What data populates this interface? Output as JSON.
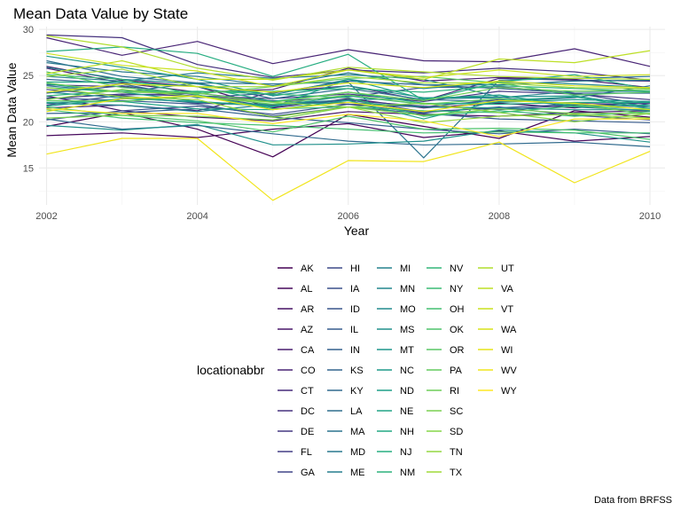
{
  "chart_data": {
    "type": "line",
    "title": "Mean Data Value by State",
    "xlabel": "Year",
    "ylabel": "Mean Data Value",
    "caption": "Data from BRFSS",
    "legend_title": "locationabbr",
    "legend_position": "bottom",
    "grid": true,
    "xlim": [
      2001.9,
      2010.2
    ],
    "ylim": [
      11,
      30.3
    ],
    "x_ticks": [
      2002,
      2004,
      2006,
      2008,
      2010
    ],
    "y_ticks": [
      15,
      20,
      25,
      30
    ],
    "x": [
      2002,
      2003,
      2004,
      2005,
      2006,
      2007,
      2008,
      2009,
      2010
    ],
    "colors": [
      "#440154",
      "#440256",
      "#450457",
      "#450559",
      "#46075a",
      "#46085c",
      "#460a5d",
      "#460b5e",
      "#470d60",
      "#470e61",
      "#471063",
      "#471164",
      "#471365",
      "#481467",
      "#481668",
      "#481769",
      "#48186a",
      "#481a6c",
      "#481b6d",
      "#481c6e",
      "#481d6f",
      "#481f70",
      "#482071",
      "#482173",
      "#482374",
      "#482475",
      "#482576",
      "#482677",
      "#482878",
      "#482979",
      "#472a7a",
      "#472c7a",
      "#472d7b",
      "#472e7c",
      "#472f7d",
      "#46307e",
      "#46327e",
      "#46337f",
      "#463480",
      "#453581",
      "#453781",
      "#453882",
      "#443983",
      "#443a83",
      "#443b84",
      "#433d84",
      "#433e85",
      "#423f85",
      "#424086",
      "#424186",
      "#414487",
      "#404588",
      "#404688",
      "#3f4788",
      "#3f4889",
      "#3e4989",
      "#3e4a89",
      "#3e4c8a",
      "#3d4d8a",
      "#3d4e8a",
      "#3c4f8a",
      "#3c508b",
      "#3b518b",
      "#3b528b",
      "#3a538b",
      "#3a548c",
      "#39558c",
      "#39568c",
      "#38588c",
      "#38598c",
      "#375a8c",
      "#375b8d",
      "#365c8d",
      "#365d8d",
      "#355e8d",
      "#355f8d",
      "#34608d",
      "#34618d",
      "#33628d",
      "#33638d",
      "#32648e",
      "#32658e",
      "#31668e",
      "#31678e",
      "#31688e",
      "#30698e",
      "#306a8e",
      "#2f6b8e",
      "#2f6c8e",
      "#2e6d8e",
      "#2e6e8e",
      "#2e6f8e",
      "#2d708e",
      "#2d718e",
      "#2c718e",
      "#2c728e",
      "#2c738e",
      "#2b748e",
      "#2b758e",
      "#2a768e",
      "#2a778e",
      "#2a788e",
      "#29798e",
      "#297a8e",
      "#297b8e",
      "#287c8e",
      "#287d8e",
      "#277e8e",
      "#277f8e",
      "#27808e",
      "#26818e",
      "#26828e",
      "#26828e",
      "#25838e",
      "#25848e",
      "#25858e",
      "#24868e",
      "#24878e",
      "#23888e",
      "#23898e",
      "#238a8d",
      "#228b8d",
      "#228c8d",
      "#228d8d",
      "#218e8d",
      "#218f8d",
      "#21908d",
      "#21918c",
      "#20928c",
      "#20928c",
      "#20938c",
      "#1f948c",
      "#1f958b",
      "#1f968b",
      "#1f978b",
      "#1f988b",
      "#1f998a",
      "#1f9a8a",
      "#1e9b8a",
      "#1e9c89",
      "#1e9d89",
      "#1f9e89",
      "#1f9f88",
      "#1fa088",
      "#1fa188",
      "#1fa187",
      "#1fa287",
      "#20a386",
      "#20a486",
      "#21a585",
      "#21a685",
      "#22a785",
      "#22a884",
      "#23a983",
      "#24aa83",
      "#25ab82",
      "#25ac82",
      "#26ad81",
      "#27ad81",
      "#28ae80",
      "#29af7f",
      "#2ab07f",
      "#2cb17e",
      "#2db27d",
      "#2eb37c",
      "#2fb47c",
      "#31b57b",
      "#32b67a",
      "#34b679",
      "#35b779",
      "#37b878",
      "#38b977",
      "#3aba76",
      "#3bbb75",
      "#3dbc74",
      "#3fbc73",
      "#40bd72",
      "#42be71",
      "#44bf70",
      "#46c06f",
      "#48c16e",
      "#4ac16d",
      "#4cc26c",
      "#4ec36b",
      "#50c46a",
      "#52c569",
      "#54c568",
      "#56c667",
      "#58c765",
      "#5ac864",
      "#5cc863",
      "#5ec962",
      "#60ca60",
      "#63cb5f",
      "#65cb5e",
      "#67cc5c",
      "#69cd5b",
      "#6ccd5a",
      "#6ece58",
      "#70cf57",
      "#73d056",
      "#75d054",
      "#77d153",
      "#7ad151",
      "#7cd250",
      "#7fd34e",
      "#81d34d",
      "#84d44b",
      "#86d549",
      "#89d548",
      "#8bd646",
      "#8ed645",
      "#90d743",
      "#93d741",
      "#95d840",
      "#98d83e",
      "#9bd93c",
      "#9dd93b",
      "#a0da39",
      "#a2da37",
      "#a5db36",
      "#a8db34",
      "#aadc32",
      "#addc30",
      "#b0dd2f",
      "#b2dd2d",
      "#b5de2b",
      "#b8de29",
      "#bade28",
      "#bddf26",
      "#c0df25",
      "#c2df23",
      "#c5e021",
      "#c8e020",
      "#cae11f",
      "#cde11d",
      "#d0e11c",
      "#d2e21b",
      "#d5e21a",
      "#d8e219",
      "#dae319",
      "#dde318",
      "#dfe318",
      "#e2e418",
      "#e5e419",
      "#e7e419",
      "#eae51a",
      "#ece51b",
      "#efe51c",
      "#f1e51d",
      "#f4e61e",
      "#f6e620",
      "#f8e621",
      "#fbe723",
      "#fde725"
    ],
    "series": [
      {
        "name": "AK",
        "values": [
          19.5,
          21.0,
          19.2,
          16.2,
          20.8,
          19.5,
          18.2,
          21.2,
          20.5
        ]
      },
      {
        "name": "AL",
        "values": [
          18.5,
          18.8,
          18.3,
          19.2,
          19.8,
          18.3,
          19.0,
          17.9,
          18.4
        ]
      },
      {
        "name": "AR",
        "values": [
          26.0,
          24.5,
          23.8,
          21.5,
          22.5,
          21.5,
          22.0,
          21.5,
          22.2
        ]
      },
      {
        "name": "AZ",
        "values": [
          22.8,
          21.2,
          20.5,
          20.1,
          21.1,
          20.8,
          20.6,
          21.0,
          21.2
        ]
      },
      {
        "name": "CA",
        "values": [
          25.8,
          24.2,
          23.2,
          23.5,
          25.8,
          24.4,
          24.8,
          24.6,
          23.7
        ]
      },
      {
        "name": "CO",
        "values": [
          29.1,
          27.2,
          28.7,
          26.3,
          27.8,
          26.6,
          26.5,
          27.9,
          26.0
        ]
      },
      {
        "name": "CT",
        "values": [
          21.5,
          21.8,
          21.2,
          23.2,
          23.9,
          22.3,
          24.7,
          24.5,
          24.4
        ]
      },
      {
        "name": "DC",
        "values": [
          29.4,
          29.1,
          26.2,
          24.8,
          25.6,
          25.3,
          25.8,
          25.4,
          24.5
        ]
      },
      {
        "name": "DE",
        "values": [
          22.5,
          23.0,
          22.8,
          22.5,
          23.0,
          22.2,
          23.3,
          23.0,
          22.4
        ]
      },
      {
        "name": "FL",
        "values": [
          24.0,
          23.8,
          22.7,
          22.3,
          21.9,
          21.6,
          22.4,
          22.0,
          22.1
        ]
      },
      {
        "name": "GA",
        "values": [
          23.5,
          22.8,
          22.0,
          21.8,
          22.3,
          21.7,
          21.3,
          21.8,
          22.0
        ]
      },
      {
        "name": "HI",
        "values": [
          21.8,
          22.9,
          23.1,
          22.2,
          22.7,
          23.7,
          23.8,
          23.1,
          21.8
        ]
      },
      {
        "name": "IA",
        "values": [
          20.2,
          21.2,
          21.7,
          20.8,
          21.9,
          21.0,
          21.6,
          20.7,
          20.2
        ]
      },
      {
        "name": "ID",
        "values": [
          23.1,
          23.9,
          22.9,
          21.6,
          22.4,
          21.1,
          21.5,
          21.9,
          21.6
        ]
      },
      {
        "name": "IL",
        "values": [
          22.6,
          22.3,
          21.9,
          20.6,
          21.6,
          20.9,
          20.3,
          20.1,
          19.9
        ]
      },
      {
        "name": "IN",
        "values": [
          20.9,
          21.0,
          21.4,
          20.5,
          19.9,
          19.2,
          18.7,
          19.2,
          18.7
        ]
      },
      {
        "name": "KS",
        "values": [
          24.6,
          24.1,
          22.6,
          23.1,
          24.4,
          24.0,
          23.6,
          23.1,
          23.1
        ]
      },
      {
        "name": "KY",
        "values": [
          20.3,
          19.2,
          19.6,
          18.7,
          17.9,
          17.5,
          17.6,
          17.8,
          17.3
        ]
      },
      {
        "name": "LA",
        "values": [
          26.6,
          24.9,
          24.2,
          22.5,
          23.6,
          22.4,
          22.2,
          22.6,
          23.9
        ]
      },
      {
        "name": "MA",
        "values": [
          23.9,
          23.2,
          24.2,
          24.1,
          24.3,
          16.1,
          24.5,
          24.7,
          24.9
        ]
      },
      {
        "name": "MD",
        "values": [
          26.4,
          25.4,
          24.9,
          23.9,
          25.3,
          24.0,
          24.0,
          24.4,
          24.5
        ]
      },
      {
        "name": "ME",
        "values": [
          24.9,
          24.4,
          25.3,
          24.7,
          25.1,
          24.6,
          22.7,
          21.6,
          21.2
        ]
      },
      {
        "name": "MI",
        "values": [
          22.0,
          21.8,
          21.1,
          21.9,
          22.4,
          22.5,
          22.6,
          23.3,
          23.3
        ]
      },
      {
        "name": "MN",
        "values": [
          25.9,
          24.6,
          24.1,
          22.9,
          24.6,
          23.6,
          24.3,
          24.1,
          23.7
        ]
      },
      {
        "name": "MO",
        "values": [
          23.2,
          22.6,
          22.1,
          21.9,
          22.1,
          21.6,
          21.5,
          21.3,
          21.3
        ]
      },
      {
        "name": "MS",
        "values": [
          19.6,
          19.1,
          19.7,
          17.5,
          17.6,
          17.9,
          19.1,
          18.8,
          17.8
        ]
      },
      {
        "name": "MT",
        "values": [
          27.1,
          25.9,
          24.6,
          22.8,
          23.9,
          22.6,
          22.7,
          22.8,
          21.6
        ]
      },
      {
        "name": "NC",
        "values": [
          24.1,
          23.2,
          22.2,
          21.7,
          22.8,
          21.9,
          22.1,
          22.4,
          22.2
        ]
      },
      {
        "name": "ND",
        "values": [
          21.7,
          22.5,
          22.2,
          21.6,
          24.6,
          22.5,
          22.9,
          21.7,
          21.8
        ]
      },
      {
        "name": "NE",
        "values": [
          22.1,
          22.2,
          21.4,
          21.3,
          22.3,
          20.3,
          22.3,
          22.7,
          21.4
        ]
      },
      {
        "name": "NH",
        "values": [
          24.3,
          24.3,
          23.8,
          22.2,
          23.2,
          22.0,
          21.9,
          22.1,
          22.1
        ]
      },
      {
        "name": "NJ",
        "values": [
          27.6,
          28.1,
          27.4,
          24.9,
          27.3,
          22.3,
          24.3,
          25.1,
          23.5
        ]
      },
      {
        "name": "NM",
        "values": [
          22.8,
          23.4,
          23.2,
          23.3,
          23.6,
          23.2,
          23.9,
          23.6,
          23.3
        ]
      },
      {
        "name": "NV",
        "values": [
          23.7,
          23.2,
          23.3,
          23.0,
          22.6,
          20.6,
          21.2,
          20.6,
          21.1
        ]
      },
      {
        "name": "NY",
        "values": [
          25.1,
          24.6,
          22.9,
          21.4,
          21.6,
          21.2,
          21.0,
          21.7,
          21.4
        ]
      },
      {
        "name": "OH",
        "values": [
          21.3,
          20.4,
          19.9,
          19.6,
          19.2,
          18.8,
          18.9,
          18.8,
          18.8
        ]
      },
      {
        "name": "OK",
        "values": [
          21.6,
          20.7,
          20.1,
          18.9,
          20.6,
          19.2,
          19.3,
          19.1,
          18.1
        ]
      },
      {
        "name": "OR",
        "values": [
          25.4,
          23.7,
          23.0,
          23.8,
          24.7,
          24.9,
          24.2,
          22.9,
          23.2
        ]
      },
      {
        "name": "PA",
        "values": [
          22.3,
          22.2,
          22.8,
          21.9,
          22.9,
          21.9,
          22.5,
          21.9,
          20.8
        ]
      },
      {
        "name": "RI",
        "values": [
          24.2,
          23.2,
          23.1,
          22.1,
          23.2,
          22.3,
          23.7,
          23.3,
          23.5
        ]
      },
      {
        "name": "SC",
        "values": [
          20.4,
          20.7,
          20.6,
          20.2,
          21.6,
          20.7,
          21.4,
          20.9,
          20.9
        ]
      },
      {
        "name": "SD",
        "values": [
          22.4,
          23.5,
          22.7,
          22.1,
          21.6,
          22.0,
          21.0,
          20.0,
          20.9
        ]
      },
      {
        "name": "TN",
        "values": [
          23.7,
          22.7,
          22.4,
          20.5,
          21.6,
          19.9,
          20.6,
          20.8,
          20.4
        ]
      },
      {
        "name": "TX",
        "values": [
          24.9,
          25.7,
          23.8,
          23.8,
          24.9,
          24.2,
          24.2,
          23.7,
          23.6
        ]
      },
      {
        "name": "UT",
        "values": [
          29.3,
          28.1,
          25.8,
          24.5,
          25.9,
          25.4,
          24.9,
          24.7,
          24.6
        ]
      },
      {
        "name": "VA",
        "values": [
          25.2,
          26.6,
          24.6,
          24.6,
          25.6,
          24.6,
          26.8,
          26.4,
          27.7
        ]
      },
      {
        "name": "VT",
        "values": [
          27.4,
          26.1,
          25.5,
          23.8,
          25.6,
          24.8,
          25.6,
          24.9,
          25.1
        ]
      },
      {
        "name": "WA",
        "values": [
          23.2,
          24.1,
          23.8,
          23.2,
          24.2,
          23.7,
          24.4,
          23.9,
          23.7
        ]
      },
      {
        "name": "WI",
        "values": [
          21.1,
          22.5,
          22.8,
          21.3,
          22.1,
          21.1,
          22.3,
          22.0,
          21.3
        ]
      },
      {
        "name": "WV",
        "values": [
          16.5,
          18.2,
          18.2,
          11.5,
          15.8,
          15.7,
          17.8,
          13.4,
          16.8
        ]
      },
      {
        "name": "WY",
        "values": [
          21.4,
          20.9,
          20.9,
          19.8,
          20.8,
          20.1,
          18.4,
          20.3,
          20.3
        ]
      }
    ]
  }
}
